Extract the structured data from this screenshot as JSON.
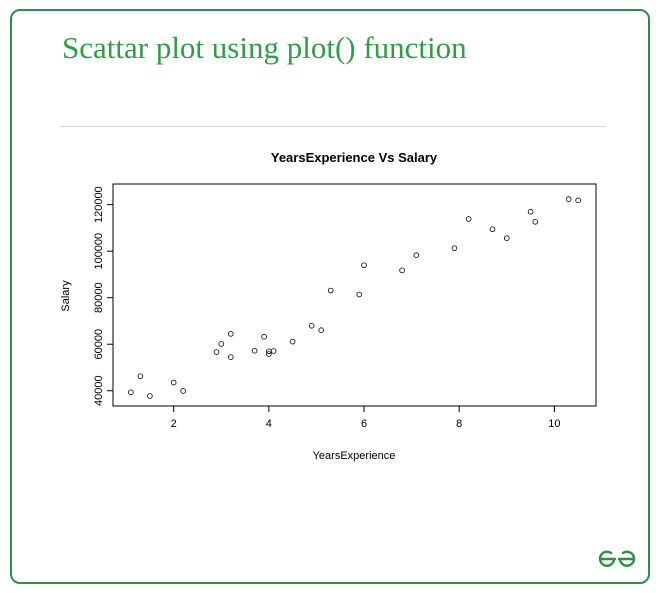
{
  "slide": {
    "heading": "Scattar plot using plot() function",
    "accent_color": "#2f9d46",
    "logo_icon": "gfg-logo-icon"
  },
  "chart_data": {
    "type": "scatter",
    "title": "YearsExperience Vs Salary",
    "xlabel": "YearsExperience",
    "ylabel": "Salary",
    "xlim": [
      0.725,
      10.875
    ],
    "ylim": [
      33432,
      128888
    ],
    "xticks": [
      2,
      4,
      6,
      8,
      10
    ],
    "yticks": [
      40000,
      60000,
      80000,
      100000,
      120000
    ],
    "grid": false,
    "marker": "open-circle",
    "x": [
      1.1,
      1.3,
      1.5,
      2.0,
      2.2,
      2.9,
      3.0,
      3.2,
      3.2,
      3.7,
      3.9,
      4.0,
      4.0,
      4.1,
      4.5,
      4.9,
      5.1,
      5.3,
      5.9,
      6.0,
      6.8,
      7.1,
      7.9,
      8.2,
      8.7,
      9.0,
      9.5,
      9.6,
      10.3,
      10.5
    ],
    "y": [
      39343,
      46205,
      37731,
      43525,
      39891,
      56642,
      60150,
      54445,
      64445,
      57189,
      63218,
      55794,
      56957,
      57081,
      61111,
      67938,
      66029,
      83088,
      81363,
      93940,
      91738,
      98273,
      101302,
      113812,
      109431,
      105582,
      116969,
      112635,
      122391,
      121872
    ]
  }
}
